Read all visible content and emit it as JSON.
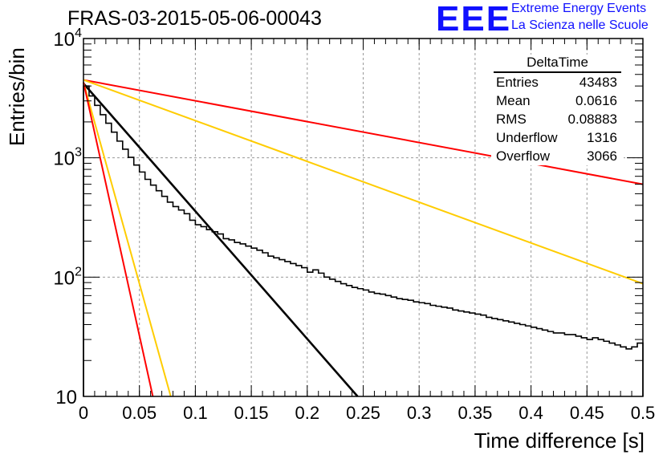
{
  "title": "FRAS-03-2015-05-06-00043",
  "brand": {
    "logo": "EEE",
    "line1": "Extreme Energy Events",
    "line2": "La Scienza nelle Scuole",
    "color": "#1010ff"
  },
  "stats": {
    "name": "DeltaTime",
    "rows": [
      {
        "label": "Entries",
        "value": "43483"
      },
      {
        "label": "Mean",
        "value": "0.0616"
      },
      {
        "label": "RMS",
        "value": "0.08883"
      },
      {
        "label": "Underflow",
        "value": "1316"
      },
      {
        "label": "Overflow",
        "value": "3066"
      }
    ]
  },
  "chart_data": {
    "type": "line",
    "title": "FRAS-03-2015-05-06-00043",
    "xlabel": "Time difference [s]",
    "ylabel": "Entries/bin",
    "xlim": [
      0,
      0.5
    ],
    "ylim": [
      10,
      10000
    ],
    "yscale": "log",
    "grid": true,
    "x_ticks": [
      "0",
      "0.05",
      "0.1",
      "0.15",
      "0.2",
      "0.25",
      "0.3",
      "0.35",
      "0.4",
      "0.45",
      "0.5"
    ],
    "x_tick_values": [
      0,
      0.05,
      0.1,
      0.15,
      0.2,
      0.25,
      0.3,
      0.35,
      0.4,
      0.45,
      0.5
    ],
    "y_ticks": [
      {
        "value": 10,
        "base": "10",
        "exp": ""
      },
      {
        "value": 100,
        "base": "10",
        "exp": "2"
      },
      {
        "value": 1000,
        "base": "10",
        "exp": "3"
      },
      {
        "value": 10000,
        "base": "10",
        "exp": "4"
      }
    ],
    "histogram": {
      "bin_width": 0.005,
      "color": "#000000",
      "values": [
        4000,
        3300,
        2750,
        2300,
        1950,
        1640,
        1380,
        1180,
        1010,
        870,
        760,
        660,
        590,
        530,
        475,
        425,
        390,
        365,
        340,
        300,
        275,
        265,
        250,
        240,
        230,
        210,
        205,
        195,
        190,
        182,
        175,
        168,
        160,
        150,
        145,
        140,
        135,
        130,
        125,
        120,
        110,
        115,
        108,
        100,
        96,
        92,
        88,
        85,
        82,
        80,
        78,
        75,
        73,
        72,
        70,
        68,
        66,
        65,
        64,
        62,
        61,
        60,
        58,
        57,
        56,
        55,
        53,
        52,
        51,
        50,
        49,
        48,
        46,
        45,
        44,
        43,
        42,
        41,
        40,
        39,
        38,
        37,
        36,
        35,
        34,
        34,
        33,
        33,
        32,
        31,
        30,
        31,
        30,
        29,
        28,
        27,
        26,
        25,
        26,
        28
      ]
    },
    "fits": [
      {
        "name": "",
        "color": "#ff0000",
        "x": [
          0,
          0.5
        ],
        "y": [
          4500,
          600
        ]
      },
      {
        "name": "",
        "color": "#ffcc00",
        "x": [
          0,
          0.5
        ],
        "y": [
          4500,
          88
        ]
      },
      {
        "name": "",
        "color": "#000000",
        "x": [
          0,
          0.245
        ],
        "y": [
          4200,
          10
        ]
      },
      {
        "name": "",
        "color": "#ffcc00",
        "x": [
          0,
          0.078
        ],
        "y": [
          4300,
          10
        ]
      },
      {
        "name": "",
        "color": "#ff0000",
        "x": [
          0,
          0.062
        ],
        "y": [
          4300,
          10
        ]
      }
    ]
  }
}
